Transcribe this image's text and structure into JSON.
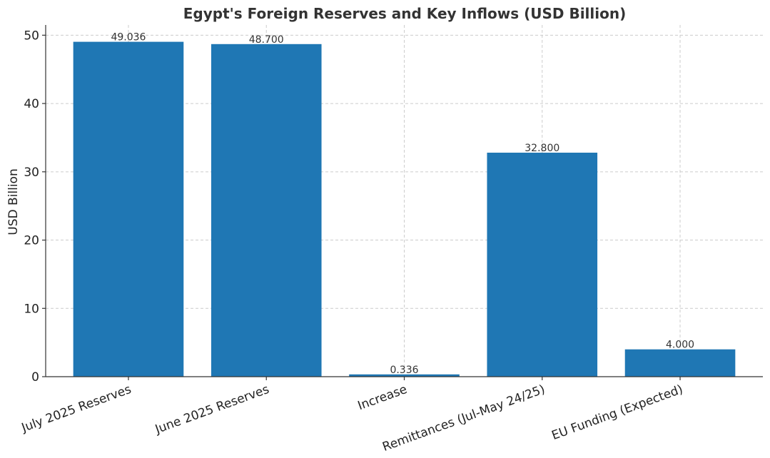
{
  "chart_data": {
    "type": "bar",
    "title": "Egypt's Foreign Reserves and Key Inflows (USD Billion)",
    "xlabel": "",
    "ylabel": "USD Billion",
    "categories": [
      "July 2025 Reserves",
      "June 2025 Reserves",
      "Increase",
      "Remittances (Jul-May 24/25)",
      "EU Funding (Expected)"
    ],
    "values": [
      49.036,
      48.7,
      0.336,
      32.8,
      4.0
    ],
    "data_labels": [
      "49.036",
      "48.700",
      "0.336",
      "32.800",
      "4.000"
    ],
    "ylim": [
      0,
      51.5
    ],
    "yticks": [
      0,
      10,
      20,
      30,
      40,
      50
    ],
    "ytick_labels": [
      "0",
      "10",
      "20",
      "30",
      "40",
      "50"
    ],
    "grid": true,
    "bar_color": "#1f77b4"
  }
}
